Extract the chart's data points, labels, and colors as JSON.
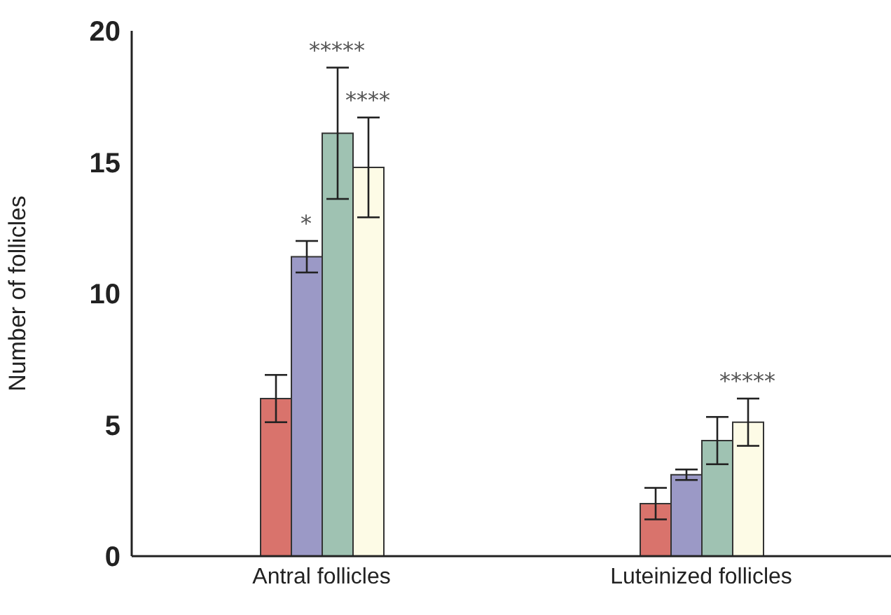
{
  "chart_data": {
    "type": "bar",
    "ylabel": "Number of follicles",
    "categories": [
      "Antral follicles",
      "Luteinized follicles"
    ],
    "series": [
      {
        "color": "#d9736c",
        "values": [
          6.0,
          2.0
        ],
        "errors": [
          0.9,
          0.6
        ]
      },
      {
        "color": "#9b99c6",
        "values": [
          11.4,
          3.1
        ],
        "errors": [
          0.6,
          0.2
        ]
      },
      {
        "color": "#9fc2b2",
        "values": [
          16.1,
          4.4
        ],
        "errors": [
          2.5,
          0.9
        ]
      },
      {
        "color": "#fdfbe6",
        "values": [
          14.8,
          5.1
        ],
        "errors": [
          1.9,
          0.9
        ]
      }
    ],
    "ylim": [
      0,
      20
    ],
    "yticks": [
      0,
      5,
      10,
      15,
      20
    ],
    "grid": false,
    "legend": false,
    "annotations": [
      {
        "text": "*",
        "x": "Antral follicles",
        "y": 12.0
      },
      {
        "text": "*****",
        "x": "Antral follicles",
        "y": 18.6
      },
      "****",
      "*****"
    ]
  }
}
